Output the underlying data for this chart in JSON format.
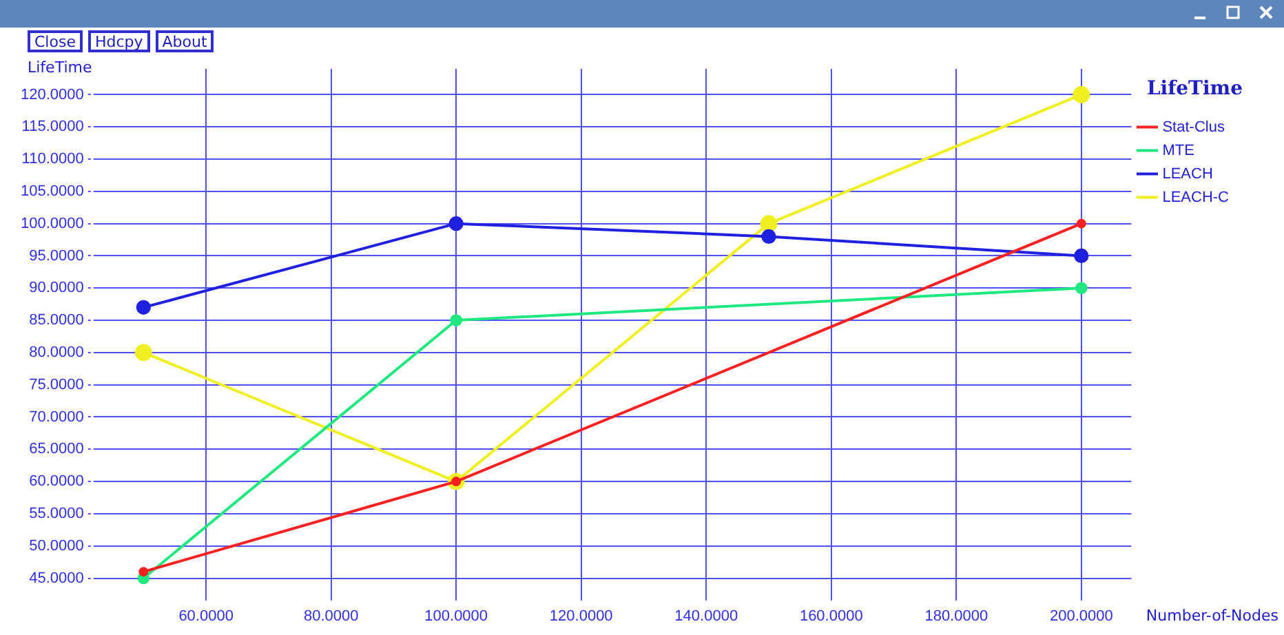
{
  "chart_data": {
    "type": "line",
    "title": "LifeTime",
    "ylabel": "LifeTime",
    "xlabel": "Number-of-Nodes",
    "annotations": [
      "Close",
      "Hdcpy",
      "About"
    ],
    "xlim": [
      42,
      208
    ],
    "ylim": [
      42,
      124
    ],
    "xticks": [
      {
        "value": 60,
        "label": "60.0000"
      },
      {
        "value": 80,
        "label": "80.0000"
      },
      {
        "value": 100,
        "label": "100.0000"
      },
      {
        "value": 120,
        "label": "120.0000"
      },
      {
        "value": 140,
        "label": "140.0000"
      },
      {
        "value": 160,
        "label": "160.0000"
      },
      {
        "value": 180,
        "label": "180.0000"
      },
      {
        "value": 200,
        "label": "200.0000"
      }
    ],
    "yticks": [
      {
        "value": 45,
        "label": "45.0000"
      },
      {
        "value": 50,
        "label": "50.0000"
      },
      {
        "value": 55,
        "label": "55.0000"
      },
      {
        "value": 60,
        "label": "60.0000"
      },
      {
        "value": 65,
        "label": "65.0000"
      },
      {
        "value": 70,
        "label": "70.0000"
      },
      {
        "value": 75,
        "label": "75.0000"
      },
      {
        "value": 80,
        "label": "80.0000"
      },
      {
        "value": 85,
        "label": "85.0000"
      },
      {
        "value": 90,
        "label": "90.0000"
      },
      {
        "value": 95,
        "label": "95.0000"
      },
      {
        "value": 100,
        "label": "100.0000"
      },
      {
        "value": 105,
        "label": "105.0000"
      },
      {
        "value": 110,
        "label": "110.0000"
      },
      {
        "value": 115,
        "label": "115.0000"
      },
      {
        "value": 120,
        "label": "120.0000"
      }
    ],
    "grid": true,
    "legend": "top right",
    "marker": "circle",
    "line_style": "solid",
    "series": [
      {
        "name": "Stat-Clus",
        "color": "#ff2020",
        "x": [
          50,
          100,
          200
        ],
        "values": [
          46,
          60,
          100
        ]
      },
      {
        "name": "MTE",
        "color": "#20e880",
        "x": [
          50,
          100,
          200
        ],
        "values": [
          45,
          85,
          90
        ]
      },
      {
        "name": "LEACH",
        "color": "#2020e0",
        "x": [
          50,
          100,
          150,
          200
        ],
        "values": [
          87,
          100,
          98,
          95
        ]
      },
      {
        "name": "LEACH-C",
        "color": "#f0f020",
        "x": [
          50,
          100,
          150,
          200
        ],
        "values": [
          80,
          60,
          100,
          120
        ]
      }
    ]
  }
}
